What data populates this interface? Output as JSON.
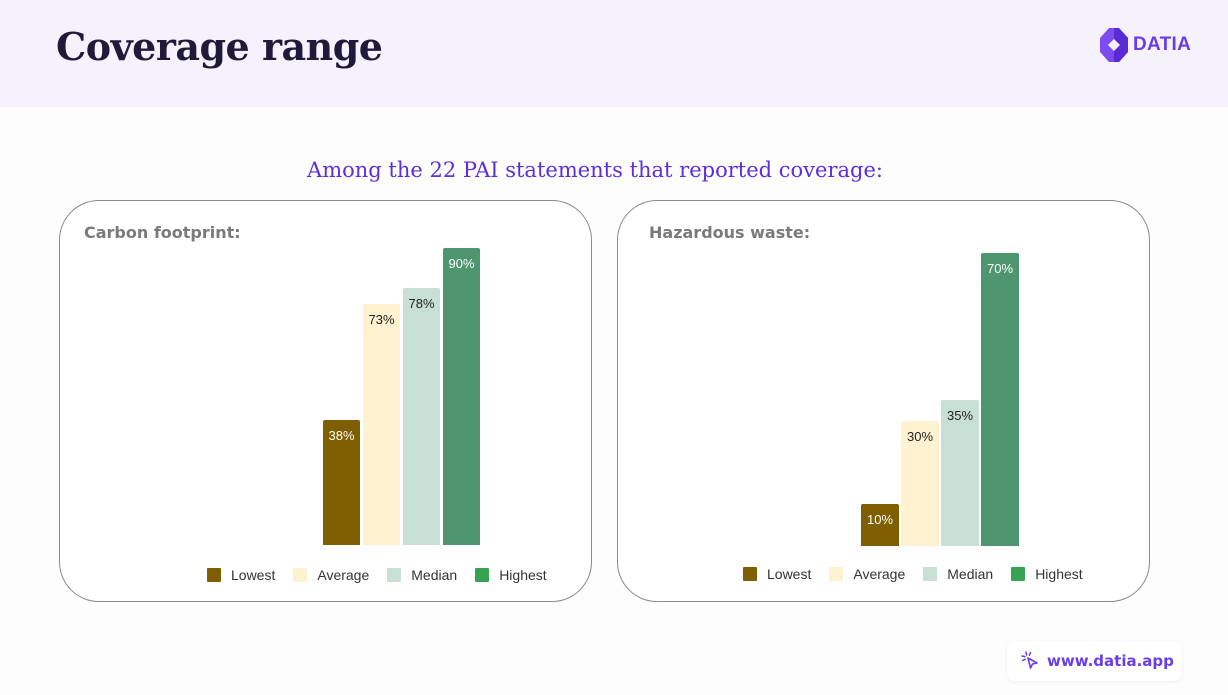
{
  "header": {
    "title": "Coverage range",
    "logo_text": "DATIA",
    "background": "#f5f2fd"
  },
  "subtitle": "Among the 22 PAI statements that reported coverage:",
  "footer": {
    "link_text": "www.datia.app",
    "icon": "cursor-click-icon"
  },
  "colors": {
    "lowest": "#7f5e00",
    "average": "#fff2d1",
    "median": "#c8e0d3",
    "highest": "#4e9670",
    "legend_highest": "#34a352",
    "accent": "#6a3de8"
  },
  "legend": [
    {
      "label": "Lowest",
      "color": "#7f5e00"
    },
    {
      "label": "Average",
      "color": "#fff2d1"
    },
    {
      "label": "Median",
      "color": "#c8e0d3"
    },
    {
      "label": "Highest",
      "color": "#34a352"
    }
  ],
  "chart_data": [
    {
      "type": "bar",
      "title": "Carbon footprint:",
      "categories": [
        "Lowest",
        "Average",
        "Median",
        "Highest"
      ],
      "values": [
        38,
        73,
        78,
        90
      ],
      "labels": [
        "38%",
        "73%",
        "78%",
        "90%"
      ],
      "unit": "%",
      "xlabel": "",
      "ylabel": "",
      "ylim": [
        0,
        100
      ],
      "grid": false,
      "legend_position": "bottom"
    },
    {
      "type": "bar",
      "title": "Hazardous waste:",
      "categories": [
        "Lowest",
        "Average",
        "Median",
        "Highest"
      ],
      "values": [
        10,
        30,
        35,
        70
      ],
      "labels": [
        "10%",
        "30%",
        "35%",
        "70%"
      ],
      "unit": "%",
      "xlabel": "",
      "ylabel": "",
      "ylim": [
        0,
        75
      ],
      "grid": false,
      "legend_position": "bottom"
    }
  ]
}
